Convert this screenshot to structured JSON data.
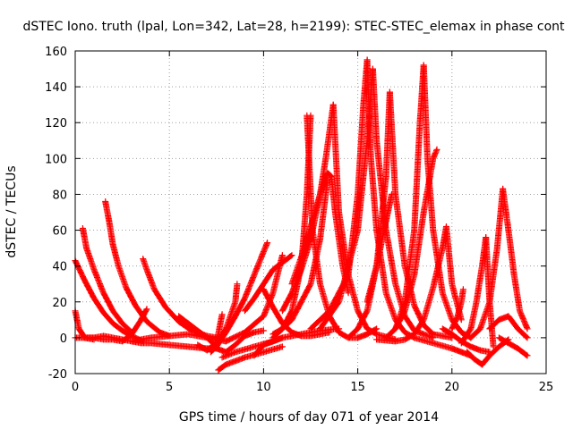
{
  "chart_data": {
    "type": "scatter",
    "title": "dSTEC Iono. truth (lpal, Lon=342, Lat=28, h=2199): STEC-STEC_elemax in phase cont",
    "xlabel": "GPS time / hours of day 071 of year 2014",
    "ylabel": "dSTEC  / TECUs",
    "xlim": [
      0,
      25
    ],
    "ylim": [
      -20,
      160
    ],
    "xticks": [
      "0",
      "5",
      "10",
      "15",
      "20",
      "25"
    ],
    "yticks": [
      "-20",
      "0",
      "20",
      "40",
      "60",
      "80",
      "100",
      "120",
      "140",
      "160"
    ],
    "grid": true,
    "marker": "plus",
    "color": "#ff0000",
    "series": [
      {
        "x": [
          0.0,
          0.5,
          1.0,
          1.5,
          2.0,
          2.5,
          3.0,
          3.6
        ],
        "y": [
          43,
          32,
          22,
          14,
          8,
          4,
          1,
          -2
        ]
      },
      {
        "x": [
          0.0,
          0.2,
          0.5,
          1.0
        ],
        "y": [
          15,
          5,
          0,
          -1
        ]
      },
      {
        "x": [
          0.4,
          0.6,
          1.0,
          1.5,
          2.0,
          2.5,
          3.0
        ],
        "y": [
          61,
          50,
          38,
          25,
          15,
          8,
          3
        ]
      },
      {
        "x": [
          0.0,
          0.5,
          1.0,
          1.5,
          2.0,
          2.5,
          3.0,
          3.5,
          4.0,
          5.0,
          6.0,
          7.0,
          7.5
        ],
        "y": [
          0,
          0,
          0,
          1,
          0,
          -1,
          -2,
          -3,
          -3,
          -4,
          -5,
          -6,
          -6
        ]
      },
      {
        "x": [
          1.6,
          1.8,
          2.0,
          2.3,
          2.7,
          3.2,
          3.8,
          4.5,
          5.0
        ],
        "y": [
          76,
          65,
          52,
          40,
          28,
          18,
          9,
          3,
          1
        ]
      },
      {
        "x": [
          0.5,
          1.0,
          1.5,
          2.0,
          2.5,
          3.0,
          3.5,
          3.8
        ],
        "y": [
          0,
          0,
          -1,
          -1,
          -2,
          2,
          10,
          16
        ]
      },
      {
        "x": [
          3.6,
          3.8,
          4.2,
          4.8,
          5.5,
          6.2,
          7.0,
          7.5
        ],
        "y": [
          44,
          38,
          27,
          17,
          9,
          4,
          1,
          0
        ]
      },
      {
        "x": [
          5.5,
          6.0,
          6.5,
          7.0,
          7.3
        ],
        "y": [
          12,
          8,
          4,
          0,
          -3
        ]
      },
      {
        "x": [
          3.0,
          4.0,
          5.0,
          6.0,
          7.0,
          8.0
        ],
        "y": [
          -2,
          0,
          1,
          2,
          0,
          -2
        ]
      },
      {
        "x": [
          7.5,
          8.0,
          8.5,
          9.0,
          9.5,
          10.0
        ],
        "y": [
          -6,
          -8,
          -4,
          1,
          3,
          4
        ]
      },
      {
        "x": [
          6.5,
          7.0,
          7.5,
          7.8
        ],
        "y": [
          -4,
          -7,
          -3,
          13
        ]
      },
      {
        "x": [
          7.2,
          7.5,
          8.0,
          8.5,
          9.0,
          9.5,
          10.0,
          10.2
        ],
        "y": [
          -8,
          -5,
          3,
          12,
          22,
          35,
          48,
          53
        ]
      },
      {
        "x": [
          7.3,
          7.5,
          8.0,
          8.5,
          8.6
        ],
        "y": [
          -5,
          -3,
          5,
          20,
          30
        ]
      },
      {
        "x": [
          7.6,
          8.0,
          9.0,
          10.0,
          11.0
        ],
        "y": [
          -18,
          -15,
          -11,
          -8,
          -5
        ]
      },
      {
        "x": [
          7.8,
          8.5,
          9.5,
          10.5,
          11.0
        ],
        "y": [
          -11,
          -8,
          -5,
          -2,
          0
        ]
      },
      {
        "x": [
          8.0,
          9.0,
          10.0,
          10.5,
          11.0
        ],
        "y": [
          -2,
          3,
          12,
          25,
          46
        ]
      },
      {
        "x": [
          9.0,
          9.5,
          10.0,
          10.5,
          11.0,
          11.5
        ],
        "y": [
          15,
          22,
          30,
          38,
          42,
          46
        ]
      },
      {
        "x": [
          9.5,
          10.0,
          11.0,
          12.0,
          13.0,
          14.0
        ],
        "y": [
          -10,
          -4,
          0,
          2,
          4,
          5
        ]
      },
      {
        "x": [
          10.0,
          10.5,
          11.0,
          11.5,
          12.0,
          12.5,
          13.0,
          13.5
        ],
        "y": [
          27,
          17,
          8,
          3,
          1,
          1,
          2,
          3
        ]
      },
      {
        "x": [
          10.5,
          11.0,
          11.5,
          12.0,
          12.3,
          12.5
        ],
        "y": [
          2,
          5,
          15,
          40,
          80,
          124
        ]
      },
      {
        "x": [
          11.0,
          11.5,
          12.0,
          12.5,
          13.0,
          13.3,
          13.5,
          13.7
        ],
        "y": [
          15,
          25,
          38,
          55,
          80,
          100,
          115,
          130
        ]
      },
      {
        "x": [
          11.5,
          12.0,
          12.5,
          13.0,
          13.4,
          13.6,
          13.8,
          14.2,
          14.5
        ],
        "y": [
          30,
          45,
          62,
          80,
          92,
          90,
          70,
          40,
          25
        ]
      },
      {
        "x": [
          10.5,
          11.5,
          12.5,
          13.0,
          13.4
        ],
        "y": [
          0,
          10,
          30,
          55,
          88
        ]
      },
      {
        "x": [
          12.3,
          12.6,
          13.0,
          13.5,
          14.0,
          14.5,
          15.0,
          15.5,
          16.0
        ],
        "y": [
          124,
          60,
          30,
          12,
          3,
          0,
          0,
          2,
          5
        ]
      },
      {
        "x": [
          13.7,
          14.0,
          14.5,
          15.0,
          15.5,
          16.0,
          17.0
        ],
        "y": [
          130,
          70,
          35,
          15,
          5,
          2,
          -1
        ]
      },
      {
        "x": [
          12.5,
          13.5,
          14.5,
          15.0,
          15.3,
          15.5
        ],
        "y": [
          5,
          15,
          35,
          80,
          130,
          155
        ]
      },
      {
        "x": [
          13.0,
          14.0,
          15.0,
          15.5,
          15.8
        ],
        "y": [
          5,
          20,
          60,
          110,
          150
        ]
      },
      {
        "x": [
          15.5,
          15.7,
          16.0,
          16.5,
          17.0,
          17.5,
          18.0
        ],
        "y": [
          155,
          100,
          60,
          25,
          10,
          3,
          0
        ]
      },
      {
        "x": [
          15.8,
          16.0,
          16.5,
          17.0,
          17.5,
          18.0,
          19.0
        ],
        "y": [
          150,
          110,
          60,
          30,
          12,
          4,
          0
        ]
      },
      {
        "x": [
          14.5,
          15.0,
          15.5,
          16.0,
          16.5,
          16.7
        ],
        "y": [
          0,
          5,
          15,
          40,
          90,
          137
        ]
      },
      {
        "x": [
          16.7,
          17.0,
          17.5,
          18.0,
          18.5,
          19.0,
          20.0
        ],
        "y": [
          137,
          80,
          40,
          18,
          7,
          2,
          0
        ]
      },
      {
        "x": [
          15.5,
          16.0,
          16.5,
          16.8
        ],
        "y": [
          20,
          40,
          65,
          80
        ]
      },
      {
        "x": [
          16.5,
          17.0,
          17.5,
          18.0,
          18.3,
          18.5
        ],
        "y": [
          0,
          5,
          20,
          60,
          120,
          152
        ]
      },
      {
        "x": [
          18.5,
          18.7,
          19.0,
          19.5,
          20.0,
          20.5,
          21.0
        ],
        "y": [
          152,
          100,
          60,
          25,
          10,
          3,
          0
        ]
      },
      {
        "x": [
          17.0,
          17.5,
          18.0,
          18.5,
          19.0,
          19.2
        ],
        "y": [
          5,
          15,
          35,
          70,
          100,
          105
        ]
      },
      {
        "x": [
          16.0,
          17.0,
          17.5,
          18.0,
          18.5,
          19.0,
          19.5,
          19.7,
          20.0,
          20.5
        ],
        "y": [
          -1,
          -2,
          -1,
          2,
          10,
          28,
          50,
          62,
          30,
          10
        ]
      },
      {
        "x": [
          18.0,
          19.0,
          20.0,
          20.5,
          21.0
        ],
        "y": [
          0,
          -3,
          -6,
          -8,
          -10
        ]
      },
      {
        "x": [
          19.5,
          20.0,
          20.5,
          21.0,
          21.5,
          22.0
        ],
        "y": [
          5,
          2,
          -2,
          -5,
          -7,
          -8
        ]
      },
      {
        "x": [
          20.0,
          20.3,
          20.5,
          20.6
        ],
        "y": [
          5,
          12,
          20,
          27
        ]
      },
      {
        "x": [
          20.5,
          21.0,
          21.3,
          21.6,
          21.8
        ],
        "y": [
          -3,
          5,
          20,
          40,
          56
        ]
      },
      {
        "x": [
          21.8,
          22.0,
          22.2
        ],
        "y": [
          56,
          20,
          -5
        ]
      },
      {
        "x": [
          20.8,
          21.2,
          21.6,
          22.0,
          22.5,
          23.0
        ],
        "y": [
          -8,
          -12,
          -15,
          -10,
          -5,
          -1
        ]
      },
      {
        "x": [
          21.0,
          21.5,
          22.0,
          22.4,
          22.7
        ],
        "y": [
          0,
          5,
          20,
          50,
          83
        ]
      },
      {
        "x": [
          22.7,
          23.0,
          23.3,
          23.6,
          24.0
        ],
        "y": [
          83,
          60,
          35,
          15,
          5
        ]
      },
      {
        "x": [
          22.0,
          22.5,
          23.0,
          23.5,
          24.0
        ],
        "y": [
          5,
          10,
          12,
          5,
          0
        ]
      },
      {
        "x": [
          22.5,
          23.0,
          23.5,
          24.0
        ],
        "y": [
          0,
          -3,
          -6,
          -10
        ]
      }
    ]
  }
}
